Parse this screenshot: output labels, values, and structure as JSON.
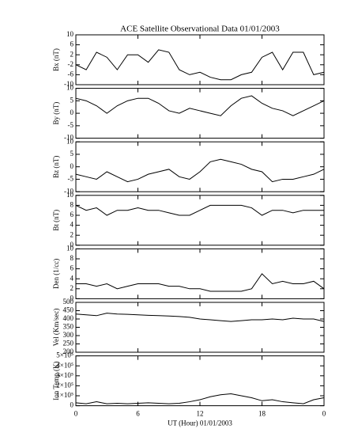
{
  "chart_data": [
    {
      "type": "line",
      "title": "ACE Satellite Observational Data   01/01/2003",
      "ylabel": "Bx (nT)",
      "ylim": [
        -10,
        10
      ],
      "yticks": [
        -10,
        -6,
        -2,
        2,
        6,
        10
      ],
      "color": "#000000",
      "x": [
        0,
        1,
        2,
        3,
        4,
        5,
        6,
        7,
        8,
        9,
        10,
        11,
        12,
        13,
        14,
        15,
        16,
        17,
        18,
        19,
        20,
        21,
        22,
        23,
        24
      ],
      "values": [
        -2,
        -4,
        3,
        1,
        -4,
        2,
        2,
        -1,
        4,
        3,
        -4,
        -6,
        -5,
        -7,
        -8,
        -8,
        -6,
        -5,
        1,
        3,
        -4,
        3,
        3,
        -6,
        -5
      ]
    },
    {
      "type": "line",
      "ylabel": "By (nT)",
      "ylim": [
        -10,
        10
      ],
      "yticks": [
        -10,
        -5,
        0,
        5,
        10
      ],
      "color": "#000000",
      "x": [
        0,
        1,
        2,
        3,
        4,
        5,
        6,
        7,
        8,
        9,
        10,
        11,
        12,
        13,
        14,
        15,
        16,
        17,
        18,
        19,
        20,
        21,
        22,
        23,
        24
      ],
      "values": [
        6,
        5,
        3,
        0,
        3,
        5,
        6,
        6,
        4,
        1,
        0,
        2,
        1,
        0,
        -1,
        3,
        6,
        7,
        4,
        2,
        1,
        -1,
        1,
        3,
        5
      ]
    },
    {
      "type": "line",
      "ylabel": "Bz (nT)",
      "ylim": [
        -10,
        10
      ],
      "yticks": [
        -10,
        -5,
        0,
        5,
        10
      ],
      "color": "#000000",
      "x": [
        0,
        1,
        2,
        3,
        4,
        5,
        6,
        7,
        8,
        9,
        10,
        11,
        12,
        13,
        14,
        15,
        16,
        17,
        18,
        19,
        20,
        21,
        22,
        23,
        24
      ],
      "values": [
        -3,
        -4,
        -5,
        -2,
        -4,
        -6,
        -5,
        -3,
        -2,
        -1,
        -4,
        -5,
        -2,
        2,
        3,
        2,
        1,
        -1,
        -2,
        -6,
        -5,
        -5,
        -4,
        -3,
        -1
      ]
    },
    {
      "type": "line",
      "ylabel": "Bt (nT)",
      "ylim": [
        0,
        10
      ],
      "yticks": [
        0,
        2,
        4,
        6,
        8,
        10
      ],
      "color": "#000000",
      "x": [
        0,
        1,
        2,
        3,
        4,
        5,
        6,
        7,
        8,
        9,
        10,
        11,
        12,
        13,
        14,
        15,
        16,
        17,
        18,
        19,
        20,
        21,
        22,
        23,
        24
      ],
      "values": [
        8,
        7,
        7.5,
        6,
        7,
        7,
        7.5,
        7,
        7,
        6.5,
        6,
        6,
        7,
        8,
        8,
        8,
        8,
        7.5,
        6,
        7,
        7,
        6.5,
        7,
        7,
        7
      ]
    },
    {
      "type": "line",
      "ylabel": "Den (1/cc)",
      "ylim": [
        0,
        10
      ],
      "yticks": [
        0,
        2,
        4,
        6,
        8,
        10
      ],
      "color": "#000000",
      "x": [
        0,
        1,
        2,
        3,
        4,
        5,
        6,
        7,
        8,
        9,
        10,
        11,
        12,
        13,
        14,
        15,
        16,
        17,
        18,
        19,
        20,
        21,
        22,
        23,
        24
      ],
      "values": [
        3,
        3,
        2.5,
        3,
        2,
        2.5,
        3,
        3,
        3,
        2.5,
        2.5,
        2,
        2,
        1.5,
        1.5,
        1.5,
        1.5,
        2,
        5,
        3,
        3.5,
        3,
        3,
        3.5,
        2
      ]
    },
    {
      "type": "line",
      "ylabel": "Vel (Km/sec)",
      "ylim": [
        200,
        500
      ],
      "yticks": [
        200,
        250,
        300,
        350,
        400,
        450,
        500
      ],
      "color": "#000000",
      "x": [
        0,
        1,
        2,
        3,
        4,
        5,
        6,
        7,
        8,
        9,
        10,
        11,
        12,
        13,
        14,
        15,
        16,
        17,
        18,
        19,
        20,
        21,
        22,
        23,
        24
      ],
      "values": [
        430,
        425,
        420,
        435,
        430,
        428,
        425,
        422,
        420,
        418,
        415,
        410,
        400,
        395,
        390,
        385,
        390,
        395,
        395,
        400,
        395,
        405,
        400,
        400,
        385
      ]
    },
    {
      "type": "line",
      "ylabel": "Ion Temp (K)",
      "xlabel": "UT (Hour)   01/01/2003",
      "ylim": [
        0,
        500000
      ],
      "yticks": [
        0,
        {
          "value": 100000,
          "label": "1×10⁵"
        },
        {
          "value": 200000,
          "label": "2×10⁵"
        },
        {
          "value": 300000,
          "label": "3×10⁵"
        },
        {
          "value": 400000,
          "label": "4×10⁵"
        },
        {
          "value": 500000,
          "label": "5×10⁵"
        }
      ],
      "xlim": [
        0,
        24
      ],
      "xticks": [
        0,
        6,
        12,
        18,
        {
          "value": 24,
          "label": "0"
        }
      ],
      "color": "#000000",
      "x": [
        0,
        1,
        2,
        3,
        4,
        5,
        6,
        7,
        8,
        9,
        10,
        11,
        12,
        13,
        14,
        15,
        16,
        17,
        18,
        19,
        20,
        21,
        22,
        23,
        24
      ],
      "values": [
        30000,
        20000,
        40000,
        20000,
        25000,
        20000,
        25000,
        30000,
        25000,
        20000,
        25000,
        40000,
        60000,
        90000,
        110000,
        120000,
        100000,
        80000,
        50000,
        60000,
        40000,
        30000,
        20000,
        60000,
        80000
      ]
    }
  ]
}
